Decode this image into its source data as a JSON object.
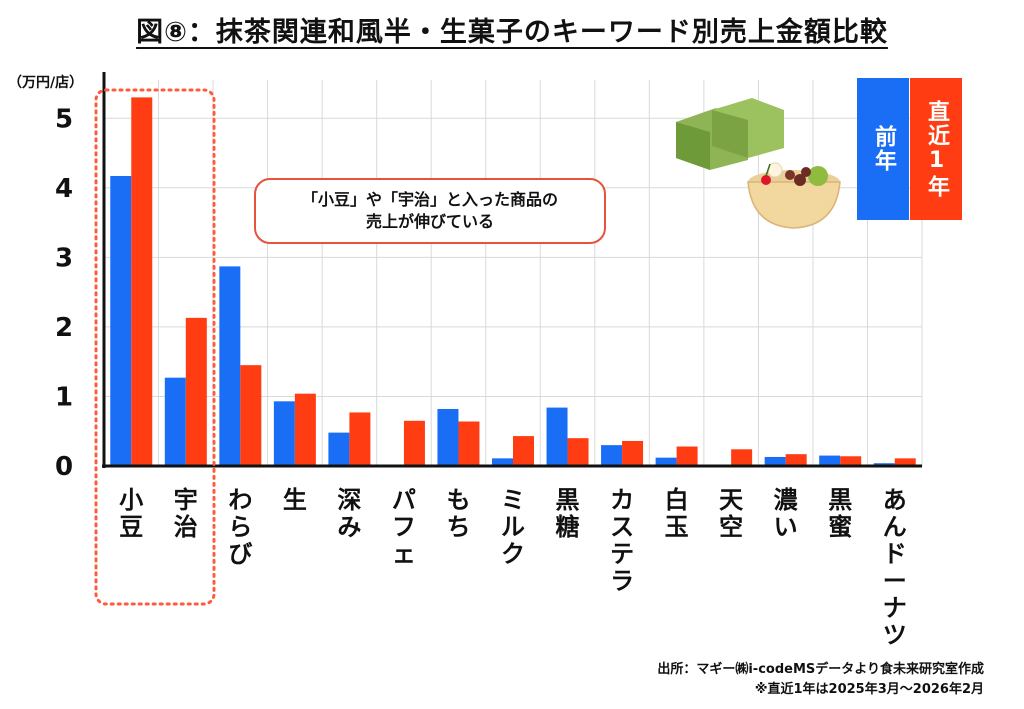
{
  "title": "図⑧：抹茶関連和風半・生菓子のキーワード別売上金額比較",
  "unit_label": "（万円/店）",
  "callout": {
    "line1": "「小豆」や「宇治」と入った商品の",
    "line2": "売上が伸びている"
  },
  "legend": {
    "prev": "前年",
    "recent": "直近1年"
  },
  "source": {
    "line1": "出所：マギー㈱i-codeMSデータより食未来研究室作成",
    "line2": "※直近1年は2025年3月～2026年2月"
  },
  "colors": {
    "prev": "#1a6ef5",
    "recent": "#ff3c12",
    "grid": "#d9d9d9",
    "axis": "#111111",
    "highlight": "#ff5a3c"
  },
  "chart_data": {
    "type": "bar",
    "categories": [
      "小豆",
      "宇治",
      "わらび",
      "生",
      "深み",
      "パフェ",
      "もち",
      "ミルク",
      "黒糖",
      "カステラ",
      "白玉",
      "天空",
      "濃い",
      "黒蜜",
      "あんドーナツ"
    ],
    "series": [
      {
        "name": "前年",
        "values": [
          4.17,
          1.27,
          2.87,
          0.93,
          0.48,
          0.0,
          0.82,
          0.11,
          0.84,
          0.3,
          0.12,
          0.0,
          0.13,
          0.15,
          0.04
        ]
      },
      {
        "name": "直近1年",
        "values": [
          5.3,
          2.13,
          1.45,
          1.04,
          0.77,
          0.65,
          0.64,
          0.43,
          0.4,
          0.36,
          0.28,
          0.24,
          0.17,
          0.14,
          0.11
        ]
      }
    ],
    "yticks": [
      0,
      1,
      2,
      3,
      4,
      5
    ],
    "ylim": [
      0,
      5.55
    ],
    "highlight_categories": [
      "小豆",
      "宇治"
    ]
  }
}
